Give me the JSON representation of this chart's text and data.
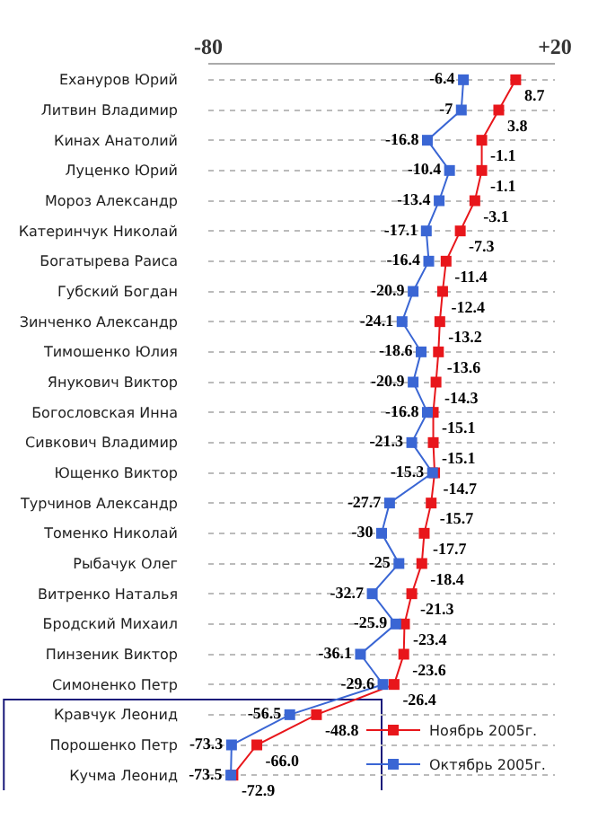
{
  "chart_data": {
    "type": "line",
    "orientation": "horizontal",
    "categories": [
      "Еханyров Юрий",
      "Литвин Владимир",
      "Кинах Анатолий",
      "Луценко Юрий",
      "Мороз Александр",
      "Катеринчук Николай",
      "Богатырева Раиса",
      "Губский Богдан",
      "Зинченко Александр",
      "Тимошенко Юлия",
      "Янукович Виктор",
      "Богословская Инна",
      "Сивкович Владимир",
      "Ющенко Виктор",
      "Турчинов Александр",
      "Томенко Николай",
      "Рыбачук Олег",
      "Витренко Наталья",
      "Бродский Михаил",
      "Пинзеник Виктор",
      "Симоненко Петр",
      "Кравчук Леонид",
      "Порошенко Петр",
      "Кучма Леонид"
    ],
    "series": [
      {
        "name": "Ноябрь 2005г.",
        "color": "#e8161b",
        "values": [
          8.7,
          3.8,
          -1.1,
          -1.1,
          -3.1,
          -7.3,
          -11.4,
          -12.4,
          -13.2,
          -13.6,
          -14.3,
          -15.1,
          -15.1,
          -14.7,
          -15.7,
          -17.7,
          -18.4,
          -21.3,
          -23.4,
          -23.6,
          -26.4,
          -48.8,
          -66.0,
          -72.9
        ],
        "value_labels": [
          "8.7",
          "3.8",
          "-1.1",
          "-1.1",
          "-3.1",
          "-7.3",
          "-11.4",
          "-12.4",
          "-13.2",
          "-13.6",
          "-14.3",
          "-15.1",
          "-15.1",
          "-14.7",
          "-15.7",
          "-17.7",
          "-18.4",
          "-21.3",
          "-23.4",
          "-23.6",
          "-26.4",
          "-48.8",
          "-66.0",
          "-72.9"
        ]
      },
      {
        "name": "Октябрь 2005г.",
        "color": "#3a66d4",
        "values": [
          -6.4,
          -7,
          -16.8,
          -10.4,
          -13.4,
          -17.1,
          -16.4,
          -20.9,
          -24.1,
          -18.6,
          -20.9,
          -16.8,
          -21.3,
          -15.3,
          -27.7,
          -30,
          -25,
          -32.7,
          -25.9,
          -36.1,
          -29.6,
          -56.5,
          -73.3,
          -73.5
        ],
        "value_labels": [
          "-6.4",
          "-7",
          "-16.8",
          "-10.4",
          "-13.4",
          "-17.1",
          "-16.4",
          "-20.9",
          "-24.1",
          "-18.6",
          "-20.9",
          "-16.8",
          "-21.3",
          "-15.3",
          "-27.7",
          "-30",
          "-25",
          "-32.7",
          "-25.9",
          "-36.1",
          "-29.6",
          "-56.5",
          "-73.3",
          "-73.5"
        ]
      }
    ],
    "xlim": [
      -80,
      20
    ],
    "xticks": [
      {
        "value": -80,
        "label": "-80"
      },
      {
        "value": 20,
        "label": "+20"
      }
    ],
    "grid": "y",
    "legend": "bottom right",
    "marker": "square",
    "line_style": "solid"
  }
}
